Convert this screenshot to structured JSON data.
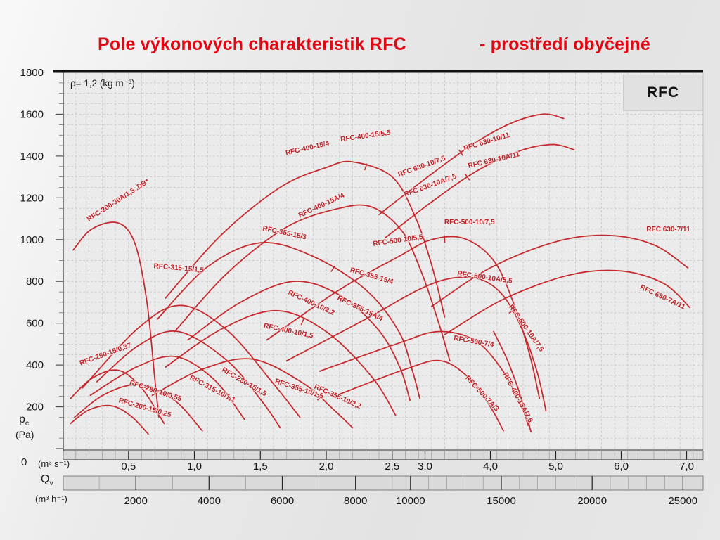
{
  "title": {
    "main": "Pole výkonových charakteristik RFC",
    "suffix": "- prostředí obyčejné"
  },
  "plot": {
    "corner_tag": "RFC",
    "density_note": "ρ= 1,2 (kg m⁻³)"
  },
  "axes": {
    "y": {
      "label": "p",
      "label_sub": "c",
      "unit": "(Pa)",
      "zero": "0",
      "ticks": [
        1800,
        1600,
        1400,
        1200,
        1000,
        800,
        600,
        400,
        200
      ]
    },
    "x_volume_s": {
      "unit": "(m³ s⁻¹)",
      "ticks": [
        {
          "q": 0.5,
          "label": "0,5"
        },
        {
          "q": 1.0,
          "label": "1,0"
        },
        {
          "q": 1.5,
          "label": "1,5"
        },
        {
          "q": 2.0,
          "label": "2,0"
        },
        {
          "q": 2.5,
          "label": "2,5"
        },
        {
          "q": 3.0,
          "label": "3,0"
        },
        {
          "q": 4.0,
          "label": "4,0"
        },
        {
          "q": 5.0,
          "label": "5,0"
        },
        {
          "q": 6.0,
          "label": "6,0"
        },
        {
          "q": 7.0,
          "label": "7,0"
        }
      ]
    },
    "x_volume_h": {
      "label": "Q",
      "label_sub": "v",
      "unit": "(m³ h⁻¹)",
      "ticks": [
        {
          "v": 2000,
          "label": "2000"
        },
        {
          "v": 4000,
          "label": "4000"
        },
        {
          "v": 6000,
          "label": "6000"
        },
        {
          "v": 8000,
          "label": "8000"
        },
        {
          "v": 10000,
          "label": "10000"
        },
        {
          "v": 15000,
          "label": "15000"
        },
        {
          "v": 20000,
          "label": "20000"
        },
        {
          "v": 25000,
          "label": "25000"
        }
      ]
    }
  },
  "colors": {
    "title_red": "#e30613",
    "curve_red": "#c5292e",
    "grid_gray": "#c5c5c5",
    "band_gray": "#dadada"
  },
  "chart_data": {
    "type": "line",
    "title": "Pole výkonových charakteristik RFC - prostředí obyčejné",
    "x_axis": {
      "quantity": "Q_v",
      "units": [
        "m³ s⁻¹",
        "m³ h⁻¹"
      ],
      "scale": "piecewise linear, compressed 2x above 2,5 m³ s⁻¹",
      "range": [
        0,
        7.25
      ]
    },
    "y_axis": {
      "quantity": "p_c",
      "unit": "Pa",
      "range": [
        0,
        1800
      ],
      "tick_step": 200,
      "grid_step": 50
    },
    "grid": "dashed",
    "curves": [
      {
        "name": "RFC-200-30A/1,5..DB*",
        "points": [
          [
            0.08,
            950
          ],
          [
            0.22,
            1050
          ],
          [
            0.42,
            1080
          ],
          [
            0.55,
            980
          ],
          [
            0.64,
            700
          ],
          [
            0.7,
            330
          ],
          [
            0.73,
            150
          ]
        ],
        "labels": [
          {
            "text": "RFC-200-30A/1,5..DB*",
            "q": 0.43,
            "p": 1180,
            "rot": -33
          }
        ]
      },
      {
        "name": "RFC-200-15/0,25",
        "points": [
          [
            0.06,
            120
          ],
          [
            0.2,
            185
          ],
          [
            0.37,
            205
          ],
          [
            0.52,
            155
          ],
          [
            0.65,
            70
          ]
        ],
        "labels": [
          {
            "text": "RFC-200-15/0,25",
            "q": 0.62,
            "p": 186,
            "rot": 16
          }
        ]
      },
      {
        "name": "RFC-250-15/0,37",
        "points": [
          [
            0.06,
            240
          ],
          [
            0.22,
            335
          ],
          [
            0.42,
            375
          ],
          [
            0.6,
            290
          ],
          [
            0.77,
            120
          ]
        ],
        "labels": [
          {
            "text": "RFC-250-15/0,37",
            "q": 0.33,
            "p": 442,
            "rot": -20
          }
        ]
      },
      {
        "name": "RFC-280-10/0,55",
        "points": [
          [
            0.09,
            150
          ],
          [
            0.32,
            260
          ],
          [
            0.58,
            305
          ],
          [
            0.85,
            230
          ],
          [
            1.06,
            85
          ]
        ],
        "labels": [
          {
            "text": "RFC-280-10/0,55",
            "q": 0.7,
            "p": 267,
            "rot": 18
          }
        ]
      },
      {
        "name": "RFC-280-15/1,5",
        "points": [
          [
            0.26,
            320
          ],
          [
            0.58,
            495
          ],
          [
            0.88,
            560
          ],
          [
            1.25,
            420
          ],
          [
            1.52,
            220
          ],
          [
            1.65,
            100
          ]
        ],
        "labels": [
          {
            "text": "RFC-280-15/1,5",
            "q": 1.37,
            "p": 311,
            "rot": 30
          }
        ]
      },
      {
        "name": "RFC-315-10/1,1",
        "points": [
          [
            0.21,
            255
          ],
          [
            0.56,
            390
          ],
          [
            0.86,
            440
          ],
          [
            1.15,
            330
          ],
          [
            1.38,
            140
          ]
        ],
        "labels": [
          {
            "text": "RFC-315-10/1,1",
            "q": 1.13,
            "p": 277,
            "rot": 28
          }
        ]
      },
      {
        "name": "RFC-315-15/1,5",
        "points": [
          [
            0.15,
            290
          ],
          [
            0.58,
            580
          ],
          [
            0.9,
            685
          ],
          [
            1.25,
            565
          ],
          [
            1.6,
            310
          ],
          [
            1.8,
            150
          ]
        ],
        "labels": [
          {
            "text": "RFC-315-15/1,5",
            "q": 0.88,
            "p": 854,
            "rot": 5
          }
        ]
      },
      {
        "name": "RFC-355-10",
        "points": [
          [
            0.68,
            255
          ],
          [
            1.06,
            380
          ],
          [
            1.44,
            428
          ],
          [
            1.82,
            315
          ],
          [
            2.05,
            190
          ],
          [
            2.2,
            100
          ]
        ],
        "labels": [
          {
            "text": "RFC-355-10/1,5",
            "q": 1.79,
            "p": 277,
            "rot": 18
          },
          {
            "text": "RFC-355-10/2,2",
            "q": 2.08,
            "p": 240,
            "rot": 24
          }
        ],
        "segment_ticks": [
          1.95
        ]
      },
      {
        "name": "RFC-355-15",
        "points": [
          [
            0.72,
            620
          ],
          [
            1.1,
            870
          ],
          [
            1.5,
            985
          ],
          [
            1.9,
            920
          ],
          [
            2.3,
            760
          ],
          [
            2.6,
            560
          ],
          [
            2.8,
            380
          ],
          [
            2.92,
            240
          ]
        ],
        "labels": [
          {
            "text": "RFC-355-15/3",
            "q": 1.68,
            "p": 1023,
            "rot": 12
          },
          {
            "text": "RFC-355-15/4",
            "q": 2.34,
            "p": 817,
            "rot": 16
          }
        ],
        "segment_ticks": [
          2.05
        ]
      },
      {
        "name": "RFC-355-15A/4",
        "points": [
          [
            0.95,
            520
          ],
          [
            1.35,
            700
          ],
          [
            1.75,
            800
          ],
          [
            2.1,
            735
          ],
          [
            2.4,
            565
          ],
          [
            2.62,
            385
          ],
          [
            2.77,
            230
          ]
        ],
        "labels": [
          {
            "text": "RFC-355-15A/4",
            "q": 2.25,
            "p": 662,
            "rot": 26
          }
        ]
      },
      {
        "name": "RFC-400-10",
        "points": [
          [
            0.78,
            390
          ],
          [
            1.2,
            570
          ],
          [
            1.62,
            660
          ],
          [
            2.0,
            560
          ],
          [
            2.35,
            340
          ],
          [
            2.55,
            160
          ]
        ],
        "labels": [
          {
            "text": "RFC-400-10/1,5",
            "q": 1.71,
            "p": 554,
            "rot": 12
          },
          {
            "text": "RFC-400-10/2,2",
            "q": 1.88,
            "p": 689,
            "rot": 25
          }
        ],
        "segment_ticks": [
          1.82
        ]
      },
      {
        "name": "RFC-400-15",
        "points": [
          [
            0.78,
            720
          ],
          [
            1.2,
            1020
          ],
          [
            1.65,
            1250
          ],
          [
            2.0,
            1345
          ],
          [
            2.2,
            1372
          ],
          [
            2.5,
            1300
          ],
          [
            2.85,
            1110
          ],
          [
            3.1,
            880
          ],
          [
            3.3,
            630
          ]
        ],
        "labels": [
          {
            "text": "RFC-400-15/4",
            "q": 1.86,
            "p": 1428,
            "rot": -13
          },
          {
            "text": "RFC-400-15/5,5",
            "q": 2.3,
            "p": 1486,
            "rot": -8
          }
        ],
        "segment_ticks": [
          2.3
        ]
      },
      {
        "name": "RFC-400-15A/4",
        "points": [
          [
            0.85,
            560
          ],
          [
            1.25,
            840
          ],
          [
            1.7,
            1060
          ],
          [
            2.1,
            1150
          ],
          [
            2.35,
            1155
          ],
          [
            2.65,
            1040
          ],
          [
            2.95,
            840
          ],
          [
            3.2,
            610
          ],
          [
            3.38,
            420
          ]
        ],
        "labels": [
          {
            "text": "RFC-400-15A/4",
            "q": 1.97,
            "p": 1155,
            "rot": -25
          }
        ]
      },
      {
        "name": "RFC-400-15A/7,5",
        "points": [
          [
            4.05,
            560
          ],
          [
            4.25,
            430
          ],
          [
            4.42,
            290
          ],
          [
            4.55,
            160
          ],
          [
            4.62,
            80
          ]
        ],
        "labels": [
          {
            "text": "RFC-400-15A/7,5",
            "q": 4.39,
            "p": 240,
            "rot": 62
          }
        ]
      },
      {
        "name": "RFC-500-10",
        "points": [
          [
            1.55,
            520
          ],
          [
            2.1,
            760
          ],
          [
            2.6,
            920
          ],
          [
            3.1,
            1000
          ],
          [
            3.6,
            1005
          ],
          [
            4.05,
            900
          ],
          [
            4.35,
            700
          ],
          [
            4.6,
            450
          ],
          [
            4.75,
            240
          ]
        ],
        "labels": [
          {
            "text": "RFC-500-10/5,5",
            "q": 2.59,
            "p": 986,
            "rot": -8
          },
          {
            "text": "RFC-500-10/7,5",
            "q": 3.68,
            "p": 1074,
            "rot": 0
          }
        ],
        "segment_ticks": [
          3.3
        ]
      },
      {
        "name": "RFC-500-10A",
        "points": [
          [
            1.7,
            420
          ],
          [
            2.3,
            620
          ],
          [
            2.9,
            760
          ],
          [
            3.4,
            815
          ],
          [
            3.85,
            810
          ],
          [
            4.2,
            730
          ],
          [
            4.5,
            560
          ],
          [
            4.72,
            360
          ],
          [
            4.85,
            180
          ]
        ],
        "labels": [
          {
            "text": "RFC-500-10A/5,5",
            "q": 3.91,
            "p": 810,
            "rot": 8
          },
          {
            "text": "RFC-500-10A/7,5",
            "q": 4.52,
            "p": 571,
            "rot": 55
          }
        ],
        "segment_ticks": [
          4.33
        ]
      },
      {
        "name": "RFC-500-7/4",
        "points": [
          [
            1.95,
            370
          ],
          [
            2.6,
            505
          ],
          [
            3.2,
            560
          ],
          [
            3.75,
            520
          ],
          [
            4.15,
            390
          ],
          [
            4.45,
            220
          ],
          [
            4.58,
            110
          ]
        ],
        "labels": [
          {
            "text": "RFC-500-7/4",
            "q": 3.74,
            "p": 503,
            "rot": 10
          }
        ]
      },
      {
        "name": "RFC-500-7A/3",
        "points": [
          [
            2.1,
            260
          ],
          [
            2.7,
            380
          ],
          [
            3.25,
            420
          ],
          [
            3.7,
            330
          ],
          [
            4.0,
            200
          ],
          [
            4.2,
            85
          ]
        ],
        "labels": [
          {
            "text": "RFC-500-7A/3",
            "q": 3.85,
            "p": 257,
            "rot": 47
          }
        ]
      },
      {
        "name": "RFC 630-10",
        "points": [
          [
            2.4,
            1120
          ],
          [
            3.0,
            1290
          ],
          [
            3.7,
            1450
          ],
          [
            4.3,
            1555
          ],
          [
            4.8,
            1600
          ],
          [
            5.12,
            1580
          ]
        ],
        "labels": [
          {
            "text": "RFC 630-10/7,5",
            "q": 2.96,
            "p": 1341,
            "rot": -20
          },
          {
            "text": "RFC 630-10/11",
            "q": 3.95,
            "p": 1459,
            "rot": -17
          }
        ],
        "segment_ticks": [
          3.55
        ]
      },
      {
        "name": "RFC 630-10A",
        "points": [
          [
            2.45,
            1010
          ],
          [
            3.1,
            1180
          ],
          [
            3.8,
            1330
          ],
          [
            4.45,
            1425
          ],
          [
            4.95,
            1455
          ],
          [
            5.28,
            1430
          ]
        ],
        "labels": [
          {
            "text": "RFC 630-10A/7,5",
            "q": 3.09,
            "p": 1250,
            "rot": -20
          },
          {
            "text": "RFC 630-10A/11",
            "q": 4.06,
            "p": 1371,
            "rot": -13
          }
        ],
        "segment_ticks": [
          3.65
        ]
      },
      {
        "name": "RFC 630-7/11",
        "points": [
          [
            3.1,
            680
          ],
          [
            4.0,
            865
          ],
          [
            5.0,
            990
          ],
          [
            5.8,
            1020
          ],
          [
            6.5,
            975
          ],
          [
            7.02,
            865
          ]
        ],
        "labels": [
          {
            "text": "RFC 630-7/11",
            "q": 6.72,
            "p": 1040,
            "rot": 0
          }
        ]
      },
      {
        "name": "RFC 630-7A/11",
        "points": [
          [
            3.3,
            545
          ],
          [
            4.2,
            715
          ],
          [
            5.2,
            830
          ],
          [
            6.0,
            850
          ],
          [
            6.65,
            790
          ],
          [
            7.05,
            675
          ]
        ],
        "labels": [
          {
            "text": "RFC 630-7A/11",
            "q": 6.62,
            "p": 716,
            "rot": 25
          }
        ]
      }
    ]
  }
}
